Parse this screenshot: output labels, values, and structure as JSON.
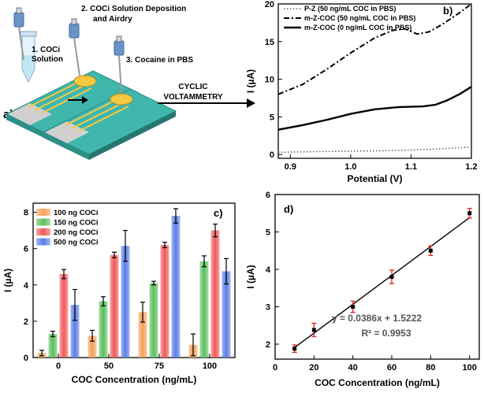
{
  "panel_a": {
    "label": "a)",
    "step1": "1. COCi",
    "step1b": "Solution",
    "step2": "2. COCi Solution Deposition",
    "step2b": "and Airdry",
    "step3": "3. Cocaine in PBS",
    "method1": "CYCLIC",
    "method2": "VOLTAMMETRY",
    "colors": {
      "strip": "#3fb7ad",
      "electrode": "#f4c842",
      "contact": "#c8c8c8",
      "pipette": "#6a94c8",
      "tip": "#e7f2fb"
    }
  },
  "chart_data": [
    {
      "panel": "b)",
      "type": "line",
      "xlabel": "Potential (V)",
      "ylabel": "I (µA)",
      "xlim": [
        0.88,
        1.2
      ],
      "ylim": [
        -0.5,
        20
      ],
      "xticks": [
        "0.9",
        "1.0",
        "1.1",
        "1.2"
      ],
      "yticks": [
        "0",
        "5",
        "10",
        "15",
        "20"
      ],
      "legend_position": "top-left",
      "series": [
        {
          "name": "P-Z (50 ng/mL COC in PBS)",
          "style": "dotted",
          "x": [
            0.88,
            0.95,
            1.0,
            1.05,
            1.1,
            1.15,
            1.2
          ],
          "values": [
            0.3,
            0.4,
            0.45,
            0.5,
            0.6,
            0.75,
            1.0
          ]
        },
        {
          "name": "m-Z-COC (50 ng/mL COC in PBS)",
          "style": "dashdot",
          "x": [
            0.88,
            0.92,
            0.96,
            1.0,
            1.04,
            1.07,
            1.09,
            1.11,
            1.13,
            1.15,
            1.18,
            1.2
          ],
          "values": [
            8.0,
            9.3,
            11.3,
            13.5,
            15.5,
            16.5,
            16.7,
            16.0,
            16.3,
            17.2,
            18.8,
            20.0
          ]
        },
        {
          "name": "m-Z-COC (0 ng/mL COC in PBS)",
          "style": "solid",
          "x": [
            0.88,
            0.92,
            0.96,
            1.0,
            1.04,
            1.08,
            1.12,
            1.14,
            1.16,
            1.18,
            1.2
          ],
          "values": [
            3.3,
            3.9,
            4.6,
            5.4,
            6.0,
            6.3,
            6.4,
            6.6,
            7.2,
            8.0,
            9.0
          ]
        }
      ]
    },
    {
      "panel": "c)",
      "type": "bar",
      "xlabel": "COC Concentration (ng/mL)",
      "ylabel": "I (µA)",
      "ylim": [
        0,
        8.5
      ],
      "yticks": [
        "0",
        "2",
        "4",
        "6",
        "8"
      ],
      "categories": [
        "0",
        "50",
        "75",
        "100"
      ],
      "legend_position": "top-left",
      "series": [
        {
          "name": "100 ng COCi",
          "color": "#f4a15a",
          "values": [
            0.25,
            1.2,
            2.5,
            0.7
          ],
          "errors": [
            0.15,
            0.3,
            0.55,
            0.6
          ]
        },
        {
          "name": "150 ng COCi",
          "color": "#5bbf5b",
          "values": [
            1.3,
            3.1,
            4.1,
            5.3
          ],
          "errors": [
            0.15,
            0.25,
            0.1,
            0.3
          ]
        },
        {
          "name": "200 ng COCi",
          "color": "#ef5a5a",
          "values": [
            4.6,
            5.65,
            6.2,
            7.0
          ],
          "errors": [
            0.25,
            0.15,
            0.15,
            0.35
          ]
        },
        {
          "name": "500 ng COCi",
          "color": "#5b7de6",
          "values": [
            2.9,
            6.15,
            7.8,
            4.75
          ],
          "errors": [
            0.85,
            0.85,
            0.4,
            0.7
          ]
        }
      ]
    },
    {
      "panel": "d)",
      "type": "scatter",
      "xlabel": "COC Concentration (ng/mL)",
      "ylabel": "I (µA)",
      "xlim": [
        0,
        105
      ],
      "ylim": [
        1.6,
        6.0
      ],
      "xticks": [
        "0",
        "20",
        "40",
        "60",
        "80",
        "100"
      ],
      "yticks": [
        "2",
        "3",
        "4",
        "5",
        "6"
      ],
      "x": [
        10,
        20,
        40,
        60,
        80,
        100
      ],
      "values": [
        1.88,
        2.38,
        3.0,
        3.8,
        4.5,
        5.5
      ],
      "errors": [
        0.1,
        0.18,
        0.15,
        0.18,
        0.13,
        0.13
      ],
      "fit": {
        "slope": 0.0386,
        "intercept": 1.5222
      },
      "equation": "y = 0.0386x + 1.5222",
      "r2": "R² = 0.9953"
    }
  ]
}
